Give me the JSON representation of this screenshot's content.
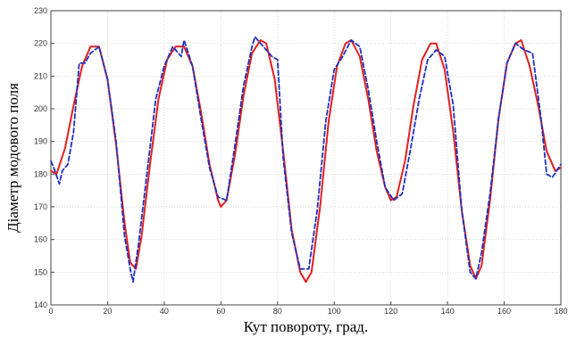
{
  "chart_data": {
    "type": "line",
    "title": "",
    "xlabel": "Кут повороту, град.",
    "ylabel": "Діаметр модового поля",
    "xlim": [
      0,
      180
    ],
    "ylim": [
      140,
      230
    ],
    "xticks": [
      0,
      20,
      40,
      60,
      80,
      100,
      120,
      140,
      160,
      180
    ],
    "yticks": [
      140,
      150,
      160,
      170,
      180,
      190,
      200,
      210,
      220,
      230
    ],
    "grid": true,
    "legend": "none",
    "series": [
      {
        "style": "solid",
        "color": "#e02020",
        "x": [
          0,
          2,
          5,
          8,
          11,
          14,
          17,
          20,
          23,
          26,
          28,
          30,
          32,
          35,
          38,
          41,
          44,
          47,
          50,
          53,
          56,
          59,
          60,
          62,
          65,
          68,
          71,
          74,
          76,
          79,
          82,
          85,
          88,
          90,
          92,
          95,
          98,
          101,
          104,
          106,
          109,
          112,
          115,
          118,
          120,
          122,
          125,
          128,
          131,
          134,
          136,
          139,
          142,
          145,
          148,
          150,
          152,
          155,
          158,
          161,
          164,
          166,
          169,
          172,
          175,
          178,
          180
        ],
        "values": [
          181,
          180,
          188,
          201,
          213,
          219,
          219,
          209,
          189,
          165,
          153,
          151,
          161,
          183,
          203,
          215,
          219,
          219,
          213,
          199,
          183,
          172,
          170,
          172,
          186,
          204,
          217,
          221,
          220,
          209,
          187,
          163,
          150,
          147,
          150,
          170,
          196,
          213,
          220,
          221,
          216,
          203,
          187,
          176,
          172,
          173,
          184,
          201,
          215,
          220,
          220,
          212,
          193,
          169,
          152,
          148,
          152,
          172,
          197,
          214,
          220,
          221,
          213,
          201,
          187,
          181,
          182
        ]
      },
      {
        "style": "dashed",
        "color": "#1f2fbf",
        "x": [
          0,
          1,
          3,
          4,
          6,
          8,
          10,
          12,
          14,
          17,
          20,
          23,
          26,
          28,
          29,
          31,
          34,
          37,
          40,
          43,
          46,
          47,
          50,
          53,
          56,
          59,
          62,
          65,
          68,
          71,
          72,
          75,
          78,
          80,
          82,
          85,
          88,
          91,
          94,
          97,
          100,
          103,
          106,
          109,
          112,
          115,
          118,
          121,
          124,
          127,
          130,
          133,
          136,
          139,
          142,
          145,
          148,
          150,
          152,
          155,
          158,
          161,
          164,
          167,
          170,
          173,
          175,
          177,
          180
        ],
        "values": [
          184,
          182,
          177,
          181,
          183,
          193,
          214,
          214,
          217,
          219,
          209,
          190,
          161,
          151,
          147,
          159,
          181,
          203,
          213,
          219,
          216,
          221,
          213,
          197,
          182,
          173,
          172,
          189,
          207,
          219,
          222,
          219,
          216,
          215,
          185,
          162,
          151,
          151,
          169,
          196,
          212,
          216,
          221,
          219,
          206,
          190,
          176,
          172,
          174,
          188,
          203,
          215,
          218,
          216,
          201,
          169,
          150,
          148,
          156,
          174,
          197,
          214,
          220,
          218,
          217,
          197,
          180,
          179,
          183
        ]
      }
    ]
  }
}
